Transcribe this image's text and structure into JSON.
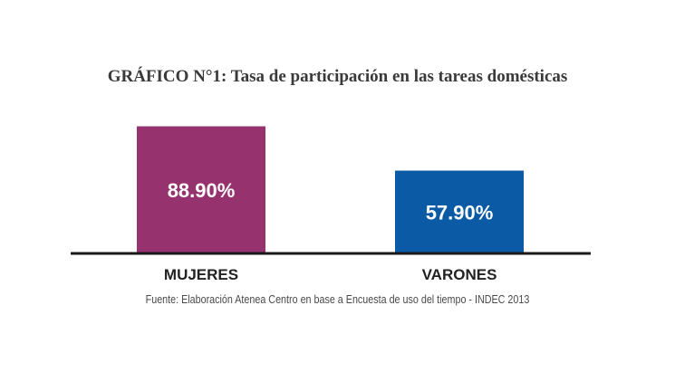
{
  "chart_data": {
    "type": "bar",
    "title": "GRÁFICO N°1: Tasa de participación en las tareas domésticas",
    "categories": [
      "MUJERES",
      "VARONES"
    ],
    "values": [
      88.9,
      57.9
    ],
    "value_labels": [
      "88.90%",
      "57.90%"
    ],
    "colors": [
      "#96336f",
      "#0b5aa6"
    ],
    "ylim": [
      0,
      100
    ],
    "grid": false,
    "legend": "none",
    "source": "Fuente: Elaboración Atenea Centro en base a Encuesta de uso del tiempo - INDEC 2013"
  }
}
